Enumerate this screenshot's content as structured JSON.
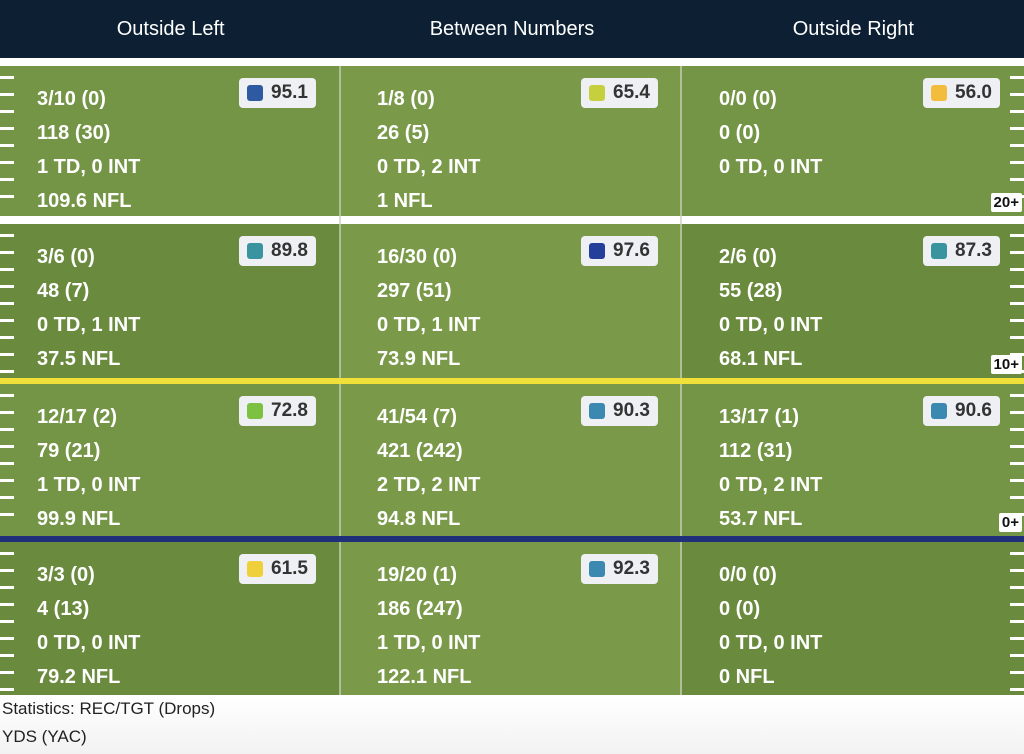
{
  "header": {
    "columns": [
      "Outside Left",
      "Between Numbers",
      "Outside Right"
    ]
  },
  "zones": [
    {
      "label": "20+",
      "cells": [
        {
          "rec": "3/10 (0)",
          "yds": "118 (30)",
          "td": "1 TD, 0 INT",
          "nfl": "109.6 NFL",
          "grade": "95.1",
          "color": "#2d5aa0"
        },
        {
          "rec": "1/8 (0)",
          "yds": "26 (5)",
          "td": "0 TD, 2 INT",
          "nfl": "1 NFL",
          "grade": "65.4",
          "color": "#c6cf3e"
        },
        {
          "rec": "0/0 (0)",
          "yds": "0 (0)",
          "td": "0 TD, 0 INT",
          "nfl": "",
          "grade": "56.0",
          "color": "#f2bd3c"
        }
      ]
    },
    {
      "label": "10+",
      "cells": [
        {
          "rec": "3/6 (0)",
          "yds": "48 (7)",
          "td": "0 TD, 1 INT",
          "nfl": "37.5 NFL",
          "grade": "89.8",
          "color": "#3a94a0"
        },
        {
          "rec": "16/30 (0)",
          "yds": "297 (51)",
          "td": "0 TD, 1 INT",
          "nfl": "73.9 NFL",
          "grade": "97.6",
          "color": "#243f99"
        },
        {
          "rec": "2/6 (0)",
          "yds": "55 (28)",
          "td": "0 TD, 0 INT",
          "nfl": "68.1 NFL",
          "grade": "87.3",
          "color": "#3a94a0"
        }
      ]
    },
    {
      "label": "0+",
      "cells": [
        {
          "rec": "12/17 (2)",
          "yds": "79 (21)",
          "td": "1 TD, 0 INT",
          "nfl": "99.9 NFL",
          "grade": "72.8",
          "color": "#7dc142"
        },
        {
          "rec": "41/54 (7)",
          "yds": "421 (242)",
          "td": "2 TD, 2 INT",
          "nfl": "94.8 NFL",
          "grade": "90.3",
          "color": "#3b88b0"
        },
        {
          "rec": "13/17 (1)",
          "yds": "112 (31)",
          "td": "0 TD, 2 INT",
          "nfl": "53.7 NFL",
          "grade": "90.6",
          "color": "#3b88b0"
        }
      ]
    },
    {
      "label": "",
      "cells": [
        {
          "rec": "3/3 (0)",
          "yds": "4 (13)",
          "td": "0 TD, 0 INT",
          "nfl": "79.2 NFL",
          "grade": "61.5",
          "color": "#f0d03a"
        },
        {
          "rec": "19/20 (1)",
          "yds": "186 (247)",
          "td": "1 TD, 0 INT",
          "nfl": "122.1 NFL",
          "grade": "92.3",
          "color": "#3b88b0"
        },
        {
          "rec": "0/0 (0)",
          "yds": "0 (0)",
          "td": "0 TD, 0 INT",
          "nfl": "0 NFL",
          "grade": "",
          "color": ""
        }
      ]
    }
  ],
  "colors": {
    "header_bg": "#0c1f33",
    "field_green_light": "#7a9a4a",
    "field_green_dark": "#6a8a3e",
    "line_of_scrimmage": "#1f2f7a",
    "first_down_line": "#f2e03a"
  },
  "footer": {
    "line1": "Statistics: REC/TGT (Drops)",
    "line2": "YDS (YAC)"
  }
}
